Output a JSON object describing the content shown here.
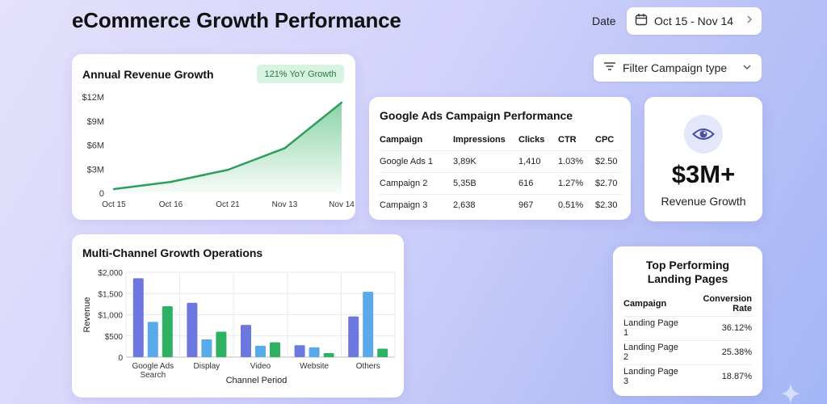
{
  "header": {
    "title": "eCommerce Growth Performance",
    "date_label": "Date",
    "date_range": "Oct 15 - Nov 14",
    "filter_label": "Filter Campaign type",
    "icons": [
      "calendar-icon",
      "chevron-right-icon",
      "filter-icon",
      "chevron-down-icon"
    ]
  },
  "revenue_card": {
    "title": "Annual Revenue Growth",
    "badge": "121% YoY Growth"
  },
  "ads_card": {
    "title": "Google Ads Campaign Performance",
    "columns": [
      "Campaign",
      "Impressions",
      "Clicks",
      "CTR",
      "CPC"
    ],
    "rows": [
      [
        "Google Ads 1",
        "3,89K",
        "1,410",
        "1.03%",
        "$2.50"
      ],
      [
        "Campaign 2",
        "5,35B",
        "616",
        "1.27%",
        "$2.70"
      ],
      [
        "Campaign 3",
        "2,638",
        "967",
        "0.51%",
        "$2.30"
      ]
    ]
  },
  "metric_card": {
    "value": "$3M+",
    "label": "Revenue Growth",
    "icon": "eye-icon"
  },
  "multi_card": {
    "title": "Multi-Channel Growth Operations"
  },
  "landing_card": {
    "title_line1": "Top Performing",
    "title_line2": "Landing Pages",
    "columns": [
      "Campaign",
      "Conversion Rate"
    ],
    "rows": [
      [
        "Landing Page 1",
        "36.12%"
      ],
      [
        "Landing Page 2",
        "25.38%"
      ],
      [
        "Landing Page 3",
        "18.87%"
      ]
    ]
  },
  "colors": {
    "line_green": "#2e9e5b",
    "area_green": "#3fb56b",
    "bar_purple": "#6d78de",
    "bar_blue": "#5aaae9",
    "bar_green": "#2fb163",
    "badge_bg": "#d9f3e2"
  },
  "chart_data": [
    {
      "type": "area",
      "x": [
        "Oct 15",
        "Oct 16",
        "Oct 21",
        "Nov 13",
        "Nov 14"
      ],
      "values": [
        0.5,
        1.4,
        2.9,
        5.6,
        11.3
      ],
      "y_unit": "M",
      "yticks": [
        "0",
        "$3M",
        "$6M",
        "$9M",
        "$12M"
      ],
      "ylim": [
        0,
        12
      ],
      "grid": false
    },
    {
      "type": "bar",
      "categories": [
        "Google Ads Search",
        "Display",
        "Video",
        "Website",
        "Others"
      ],
      "category_lines": [
        [
          "Google Ads",
          "Search"
        ],
        [
          "Display"
        ],
        [
          "Video"
        ],
        [
          "Website"
        ],
        [
          "Others"
        ]
      ],
      "series": [
        {
          "values": [
            1860,
            1280,
            760,
            280,
            960
          ]
        },
        {
          "values": [
            830,
            420,
            270,
            230,
            1540
          ]
        },
        {
          "values": [
            1200,
            600,
            350,
            95,
            200
          ]
        }
      ],
      "xlabel": "Channel Period",
      "ylabel": "Revenue",
      "yticks": [
        "0",
        "$500",
        "$1,000",
        "$1,500",
        "$2,000"
      ],
      "ylim": [
        0,
        2000
      ],
      "grid": true
    }
  ]
}
